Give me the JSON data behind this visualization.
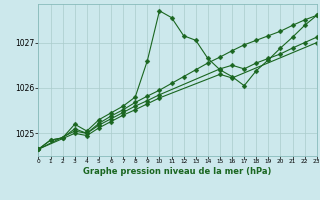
{
  "title": "Graphe pression niveau de la mer (hPa)",
  "bg_color": "#cce8ec",
  "grid_color": "#aacccc",
  "line_color": "#1a6620",
  "xmin": 0,
  "xmax": 23,
  "ymin": 1024.5,
  "ymax": 1027.85,
  "yticks": [
    1025,
    1026,
    1027
  ],
  "xticks": [
    0,
    1,
    2,
    3,
    4,
    5,
    6,
    7,
    8,
    9,
    10,
    11,
    12,
    13,
    14,
    15,
    16,
    17,
    18,
    19,
    20,
    21,
    22,
    23
  ],
  "series1": [
    [
      0,
      1024.65
    ],
    [
      1,
      1024.85
    ],
    [
      2,
      1024.9
    ],
    [
      3,
      1025.2
    ],
    [
      4,
      1025.05
    ],
    [
      5,
      1025.3
    ],
    [
      6,
      1025.45
    ],
    [
      7,
      1025.6
    ],
    [
      8,
      1025.8
    ],
    [
      9,
      1026.6
    ],
    [
      10,
      1027.7
    ],
    [
      11,
      1027.55
    ],
    [
      12,
      1027.15
    ],
    [
      13,
      1027.05
    ],
    [
      14,
      1026.65
    ],
    [
      15,
      1026.4
    ],
    [
      16,
      1026.25
    ],
    [
      17,
      1026.05
    ],
    [
      18,
      1026.38
    ],
    [
      19,
      1026.62
    ],
    [
      20,
      1026.88
    ],
    [
      21,
      1027.12
    ],
    [
      22,
      1027.38
    ],
    [
      23,
      1027.6
    ]
  ],
  "series2": [
    [
      0,
      1024.65
    ],
    [
      1,
      1024.85
    ],
    [
      2,
      1024.9
    ],
    [
      3,
      1025.1
    ],
    [
      4,
      1025.0
    ],
    [
      5,
      1025.22
    ],
    [
      6,
      1025.38
    ],
    [
      7,
      1025.52
    ],
    [
      8,
      1025.68
    ],
    [
      9,
      1025.82
    ],
    [
      10,
      1025.95
    ],
    [
      11,
      1026.1
    ],
    [
      12,
      1026.25
    ],
    [
      13,
      1026.4
    ],
    [
      14,
      1026.55
    ],
    [
      15,
      1026.68
    ],
    [
      16,
      1026.82
    ],
    [
      17,
      1026.95
    ],
    [
      18,
      1027.05
    ],
    [
      19,
      1027.15
    ],
    [
      20,
      1027.25
    ],
    [
      21,
      1027.38
    ],
    [
      22,
      1027.5
    ],
    [
      23,
      1027.6
    ]
  ],
  "series3": [
    [
      0,
      1024.65
    ],
    [
      3,
      1025.05
    ],
    [
      4,
      1025.0
    ],
    [
      5,
      1025.18
    ],
    [
      6,
      1025.32
    ],
    [
      7,
      1025.46
    ],
    [
      8,
      1025.6
    ],
    [
      9,
      1025.72
    ],
    [
      10,
      1025.85
    ],
    [
      15,
      1026.42
    ],
    [
      16,
      1026.5
    ],
    [
      17,
      1026.42
    ],
    [
      18,
      1026.55
    ],
    [
      19,
      1026.65
    ],
    [
      20,
      1026.75
    ],
    [
      21,
      1026.88
    ],
    [
      22,
      1027.0
    ],
    [
      23,
      1027.12
    ]
  ],
  "series4": [
    [
      0,
      1024.65
    ],
    [
      3,
      1025.0
    ],
    [
      4,
      1024.95
    ],
    [
      5,
      1025.12
    ],
    [
      6,
      1025.26
    ],
    [
      7,
      1025.4
    ],
    [
      8,
      1025.52
    ],
    [
      9,
      1025.65
    ],
    [
      10,
      1025.78
    ],
    [
      15,
      1026.3
    ],
    [
      16,
      1026.22
    ],
    [
      23,
      1027.0
    ]
  ]
}
